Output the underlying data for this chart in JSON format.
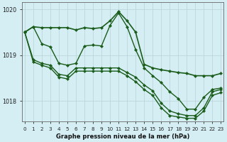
{
  "title": "Graphe pression niveau de la mer (hPa)",
  "background_color": "#d4eef4",
  "line_color": "#1a5c1a",
  "ylim": [
    1017.55,
    1020.15
  ],
  "xlim": [
    -0.3,
    23.3
  ],
  "yticks": [
    1018,
    1019,
    1020
  ],
  "xticks": [
    0,
    1,
    2,
    3,
    4,
    5,
    6,
    7,
    8,
    9,
    10,
    11,
    12,
    13,
    14,
    15,
    16,
    17,
    18,
    19,
    20,
    21,
    22,
    23
  ],
  "series": [
    [
      1019.5,
      1019.62,
      1019.6,
      1019.6,
      1019.6,
      1019.6,
      1019.55,
      1019.6,
      1019.58,
      1019.6,
      1019.75,
      1019.95,
      1019.75,
      1019.5,
      1018.8,
      1018.72,
      1018.68,
      1018.65,
      1018.62,
      1018.6,
      1018.55,
      1018.55,
      1018.55,
      1018.6
    ],
    [
      1019.5,
      1019.62,
      1019.25,
      1019.18,
      1018.82,
      1018.78,
      1018.82,
      1019.2,
      1019.22,
      1019.2,
      1019.65,
      1019.92,
      1019.62,
      1019.12,
      1018.72,
      1018.55,
      1018.4,
      1018.2,
      1018.05,
      1017.82,
      1017.82,
      1018.08,
      1018.25,
      1018.28
    ],
    [
      1019.5,
      1018.9,
      1018.82,
      1018.78,
      1018.58,
      1018.55,
      1018.72,
      1018.72,
      1018.72,
      1018.72,
      1018.72,
      1018.72,
      1018.62,
      1018.52,
      1018.35,
      1018.22,
      1017.95,
      1017.78,
      1017.72,
      1017.68,
      1017.68,
      1017.85,
      1018.2,
      1018.25
    ],
    [
      1019.5,
      1018.85,
      1018.78,
      1018.72,
      1018.52,
      1018.48,
      1018.65,
      1018.65,
      1018.65,
      1018.65,
      1018.65,
      1018.65,
      1018.55,
      1018.42,
      1018.25,
      1018.12,
      1017.85,
      1017.68,
      1017.65,
      1017.62,
      1017.62,
      1017.78,
      1018.12,
      1018.18
    ]
  ]
}
